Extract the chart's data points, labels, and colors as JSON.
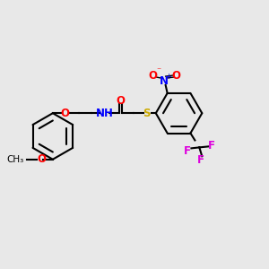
{
  "background_color": "#e8e8e8",
  "bond_color": "#000000",
  "colors": {
    "O": "#ff0000",
    "N": "#0000ff",
    "S": "#ccaa00",
    "F": "#dd00dd",
    "C": "#000000"
  },
  "figsize": [
    3.0,
    3.0
  ],
  "dpi": 100
}
